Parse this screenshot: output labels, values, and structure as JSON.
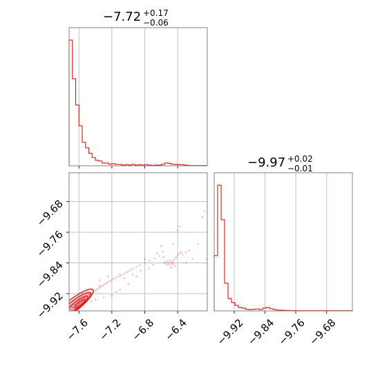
{
  "colors": {
    "series": "#d62728",
    "frame": "#808080",
    "grid": "#c0c0c0",
    "background": "#ffffff"
  },
  "chart_data": [
    {
      "type": "step",
      "panel": "top-left marginal histogram",
      "title": {
        "value": "−7.72",
        "plus": "+0.17",
        "minus": "−0.06"
      },
      "xlim": [
        -7.72,
        -6.04
      ],
      "ylim": [
        0,
        1
      ],
      "grid": true,
      "x_ticks": [
        -7.6,
        -7.2,
        -6.8,
        -6.4
      ],
      "x_tick_labels_shown": false,
      "y_tick_labels_shown": false,
      "bin_edges": [
        -7.72,
        -7.68,
        -7.64,
        -7.6,
        -7.56,
        -7.52,
        -7.48,
        -7.44,
        -7.4,
        -7.36,
        -7.32,
        -7.28,
        -7.24,
        -7.2,
        -7.16,
        -7.12,
        -7.08,
        -7.04,
        -7.0,
        -6.96,
        -6.92,
        -6.88,
        -6.84,
        -6.8,
        -6.76,
        -6.72,
        -6.68,
        -6.64,
        -6.6,
        -6.56,
        -6.52,
        -6.48,
        -6.44,
        -6.4,
        -6.36,
        -6.32,
        -6.28,
        -6.24,
        -6.2,
        -6.16,
        -6.12,
        -6.08,
        -6.04
      ],
      "values": [
        0.91,
        0.63,
        0.44,
        0.29,
        0.17,
        0.13,
        0.09,
        0.06,
        0.04,
        0.035,
        0.02,
        0.02,
        0.012,
        0.015,
        0.01,
        0.01,
        0.005,
        0.008,
        0.005,
        0.01,
        0.005,
        0.008,
        0.005,
        0.008,
        0.005,
        0.003,
        0.006,
        0.005,
        0.01,
        0.02,
        0.018,
        0.012,
        0.01,
        0.008,
        0.008,
        0.005,
        0.003,
        0.002,
        0.002,
        0.002,
        0.002,
        0.002
      ]
    },
    {
      "type": "scatter",
      "panel": "bottom-left 2D posterior",
      "xlim": [
        -7.72,
        -6.04
      ],
      "ylim": [
        -9.965,
        -9.605
      ],
      "grid": true,
      "x_ticks": [
        -7.6,
        -7.2,
        -6.8,
        -6.4
      ],
      "x_tick_labels": [
        "−7.6",
        "−7.2",
        "−6.8",
        "−6.4"
      ],
      "y_ticks": [
        -9.92,
        -9.84,
        -9.76,
        -9.68
      ],
      "y_tick_labels": [
        "−9.92",
        "−9.84",
        "−9.76",
        "−9.68"
      ],
      "points": [
        [
          -7.7,
          -9.952
        ],
        [
          -7.68,
          -9.955
        ],
        [
          -7.66,
          -9.947
        ],
        [
          -7.65,
          -9.95
        ],
        [
          -7.63,
          -9.942
        ],
        [
          -7.62,
          -9.946
        ],
        [
          -7.6,
          -9.937
        ],
        [
          -7.59,
          -9.941
        ],
        [
          -7.57,
          -9.933
        ],
        [
          -7.56,
          -9.936
        ],
        [
          -7.54,
          -9.929
        ],
        [
          -7.53,
          -9.931
        ],
        [
          -7.51,
          -9.925
        ],
        [
          -7.5,
          -9.928
        ],
        [
          -7.48,
          -9.921
        ],
        [
          -7.47,
          -9.924
        ],
        [
          -7.45,
          -9.918
        ],
        [
          -7.44,
          -9.92
        ],
        [
          -7.42,
          -9.915
        ],
        [
          -7.4,
          -9.912
        ],
        [
          -7.38,
          -9.909
        ],
        [
          -7.36,
          -9.906
        ],
        [
          -7.34,
          -9.903
        ],
        [
          -7.32,
          -9.9
        ],
        [
          -7.3,
          -9.897
        ],
        [
          -7.28,
          -9.894
        ],
        [
          -7.26,
          -9.892
        ],
        [
          -7.24,
          -9.889
        ],
        [
          -7.22,
          -9.887
        ],
        [
          -7.2,
          -9.884
        ],
        [
          -7.18,
          -9.881
        ],
        [
          -7.15,
          -9.878
        ],
        [
          -7.12,
          -9.875
        ],
        [
          -7.1,
          -9.87
        ],
        [
          -7.08,
          -9.873
        ],
        [
          -7.05,
          -9.868
        ],
        [
          -7.02,
          -9.865
        ],
        [
          -7.0,
          -9.862
        ],
        [
          -6.97,
          -9.858
        ],
        [
          -6.94,
          -9.855
        ],
        [
          -6.9,
          -9.85
        ],
        [
          -6.86,
          -9.846
        ],
        [
          -6.8,
          -9.84
        ],
        [
          -6.74,
          -9.834
        ],
        [
          -6.68,
          -9.828
        ],
        [
          -6.62,
          -9.822
        ],
        [
          -6.58,
          -9.81
        ],
        [
          -6.56,
          -9.838
        ],
        [
          -6.55,
          -9.842
        ],
        [
          -6.53,
          -9.836
        ],
        [
          -6.52,
          -9.844
        ],
        [
          -6.51,
          -9.839
        ],
        [
          -6.5,
          -9.833
        ],
        [
          -6.49,
          -9.845
        ],
        [
          -6.48,
          -9.838
        ],
        [
          -6.47,
          -9.841
        ],
        [
          -6.46,
          -9.835
        ],
        [
          -6.45,
          -9.843
        ],
        [
          -6.44,
          -9.83
        ],
        [
          -6.42,
          -9.825
        ],
        [
          -6.4,
          -9.82
        ],
        [
          -6.38,
          -9.815
        ],
        [
          -6.36,
          -9.812
        ],
        [
          -6.34,
          -9.818
        ],
        [
          -6.3,
          -9.812
        ],
        [
          -6.26,
          -9.808
        ],
        [
          -6.22,
          -9.83
        ],
        [
          -6.45,
          -9.79
        ],
        [
          -6.4,
          -9.755
        ],
        [
          -6.38,
          -9.745
        ],
        [
          -6.07,
          -9.705
        ],
        [
          -6.05,
          -9.83
        ],
        [
          -7.2,
          -9.925
        ],
        [
          -7.1,
          -9.91
        ],
        [
          -7.0,
          -9.895
        ],
        [
          -7.3,
          -9.93
        ],
        [
          -7.25,
          -9.875
        ],
        [
          -7.35,
          -9.885
        ],
        [
          -7.45,
          -9.94
        ],
        [
          -7.05,
          -9.88
        ],
        [
          -6.95,
          -9.87
        ],
        [
          -6.85,
          -9.86
        ],
        [
          -6.7,
          -9.845
        ],
        [
          -6.9,
          -9.875
        ],
        [
          -6.6,
          -9.795
        ],
        [
          -6.65,
          -9.815
        ],
        [
          -6.3,
          -9.84
        ],
        [
          -6.15,
          -9.79
        ],
        [
          -6.1,
          -9.72
        ],
        [
          -7.55,
          -9.95
        ],
        [
          -7.4,
          -9.935
        ],
        [
          -7.15,
          -9.915
        ],
        [
          -7.6,
          -9.92
        ],
        [
          -7.5,
          -9.91
        ],
        [
          -7.35,
          -9.9
        ],
        [
          -6.8,
          -9.83
        ],
        [
          -6.75,
          -9.855
        ],
        [
          -6.57,
          -9.825
        ],
        [
          -6.48,
          -9.852
        ],
        [
          -6.43,
          -9.848
        ]
      ],
      "contour_levels": 4
    },
    {
      "type": "step",
      "panel": "bottom-right marginal histogram",
      "title": {
        "value": "−9.97",
        "plus": "+0.02",
        "minus": "−0.01"
      },
      "xlim": [
        -9.972,
        -9.613
      ],
      "ylim": [
        0,
        1
      ],
      "grid": true,
      "x_ticks": [
        -9.92,
        -9.84,
        -9.76,
        -9.68
      ],
      "x_tick_labels": [
        "−9.92",
        "−9.84",
        "−9.76",
        "−9.68"
      ],
      "y_tick_labels_shown": false,
      "bin_edges": [
        -9.972,
        -9.963,
        -9.954,
        -9.945,
        -9.936,
        -9.927,
        -9.918,
        -9.909,
        -9.9,
        -9.891,
        -9.882,
        -9.873,
        -9.864,
        -9.855,
        -9.846,
        -9.837,
        -9.828,
        -9.819,
        -9.81,
        -9.801,
        -9.792,
        -9.783,
        -9.774,
        -9.765,
        -9.756,
        -9.747,
        -9.738,
        -9.729,
        -9.72,
        -9.711,
        -9.702,
        -9.693,
        -9.684,
        -9.675,
        -9.666,
        -9.657,
        -9.648,
        -9.639,
        -9.63,
        -9.621,
        -9.613
      ],
      "values": [
        0.4,
        0.91,
        0.66,
        0.2,
        0.09,
        0.06,
        0.04,
        0.025,
        0.02,
        0.012,
        0.01,
        0.012,
        0.014,
        0.01,
        0.02,
        0.025,
        0.016,
        0.01,
        0.006,
        0.005,
        0.004,
        0.003,
        0.002,
        0.002,
        0.002,
        0.002,
        0.002,
        0.002,
        0.002,
        0.002,
        0.002,
        0.002,
        0.002,
        0.002,
        0.002,
        0.002,
        0.002,
        0.002,
        0.002,
        0.002
      ]
    }
  ]
}
